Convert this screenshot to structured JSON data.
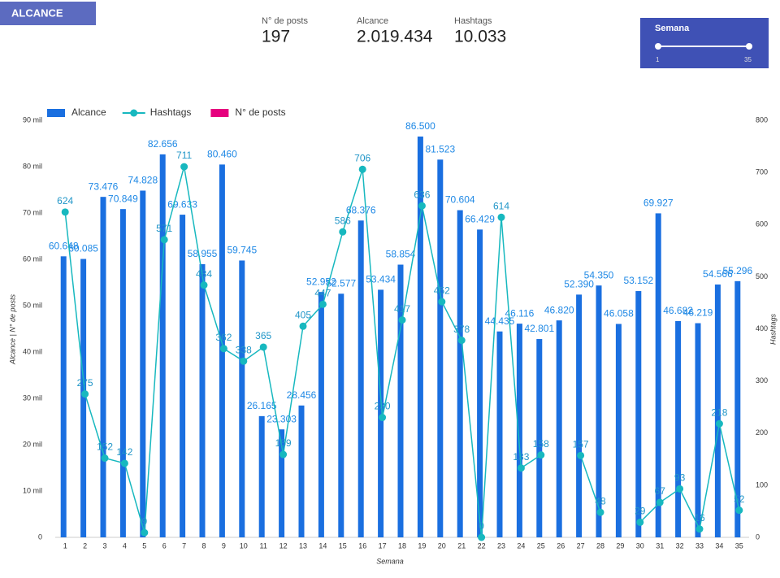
{
  "header": {
    "badge": "ALCANCE"
  },
  "kpis": [
    {
      "label": "N° de posts",
      "value": "197"
    },
    {
      "label": "Alcance",
      "value": "2.019.434"
    },
    {
      "label": "Hashtags",
      "value": "10.033"
    }
  ],
  "slider": {
    "title": "Semana",
    "min": "1",
    "max": "35"
  },
  "chart_data": {
    "type": "bar",
    "xlabel": "Semana",
    "ylabel": "Alcance | N° de posts",
    "y2label": "Hashtags",
    "categories": [
      "1",
      "2",
      "3",
      "4",
      "5",
      "6",
      "7",
      "8",
      "9",
      "10",
      "11",
      "12",
      "13",
      "14",
      "15",
      "16",
      "17",
      "18",
      "19",
      "20",
      "21",
      "22",
      "23",
      "24",
      "25",
      "26",
      "27",
      "28",
      "29",
      "30",
      "31",
      "32",
      "33",
      "34",
      "35"
    ],
    "series": [
      {
        "name": "Alcance",
        "color": "#1a6fe0",
        "type": "bar",
        "values": [
          60648,
          60085,
          73476,
          70849,
          74828,
          82656,
          69633,
          58955,
          80460,
          59745,
          26165,
          23303,
          28456,
          52952,
          52577,
          68376,
          53434,
          58854,
          86500,
          81523,
          70604,
          66429,
          44435,
          46116,
          42801,
          46820,
          52390,
          54350,
          46058,
          53152,
          69927,
          46682,
          46219,
          54566,
          55296
        ],
        "value_labels": [
          "60.648",
          "60.085",
          "73.476",
          "70.849",
          "74.828",
          "82.656",
          "69.633",
          "58.955",
          "80.460",
          "59.745",
          "26.165",
          "23.303",
          "28.456",
          "52.952",
          "52.577",
          "68.376",
          "53.434",
          "58.854",
          "86.500",
          "81.523",
          "70.604",
          "66.429",
          "44.435",
          "46.116",
          "42.801",
          "46.820",
          "52.390",
          "54.350",
          "46.058",
          "53.152",
          "69.927",
          "46.682",
          "46.219",
          "54.566",
          "55.296"
        ]
      },
      {
        "name": "Hashtags",
        "color": "#17b8bf",
        "type": "line",
        "axis": "y2",
        "values": [
          624,
          275,
          152,
          142,
          9,
          571,
          711,
          484,
          362,
          338,
          365,
          159,
          405,
          447,
          586,
          706,
          230,
          417,
          636,
          452,
          378,
          0,
          614,
          133,
          158,
          null,
          157,
          48,
          null,
          29,
          67,
          93,
          16,
          218,
          52
        ]
      },
      {
        "name": "N° de posts",
        "color": "#e6007e",
        "type": "bar",
        "values": [
          null,
          null,
          null,
          null,
          null,
          null,
          null,
          null,
          null,
          null,
          null,
          null,
          null,
          null,
          null,
          null,
          null,
          null,
          null,
          null,
          null,
          null,
          null,
          null,
          null,
          null,
          null,
          null,
          null,
          null,
          null,
          null,
          null,
          null,
          null
        ]
      }
    ],
    "ylim": [
      0,
      90000
    ],
    "yticks": [
      0,
      {
        "value": 10000,
        "label": "10 mil"
      },
      {
        "value": 20000,
        "label": "20 mil"
      },
      {
        "value": 30000,
        "label": "30 mil"
      },
      {
        "value": 40000,
        "label": "40 mil"
      },
      {
        "value": 50000,
        "label": "50 mil"
      },
      {
        "value": 60000,
        "label": "60 mil"
      },
      {
        "value": 70000,
        "label": "70 mil"
      },
      {
        "value": 80000,
        "label": "80 mil"
      },
      {
        "value": 90000,
        "label": "90 mil"
      }
    ],
    "y2lim": [
      0,
      800
    ],
    "y2ticks": [
      0,
      100,
      200,
      300,
      400,
      500,
      600,
      700,
      800
    ]
  }
}
